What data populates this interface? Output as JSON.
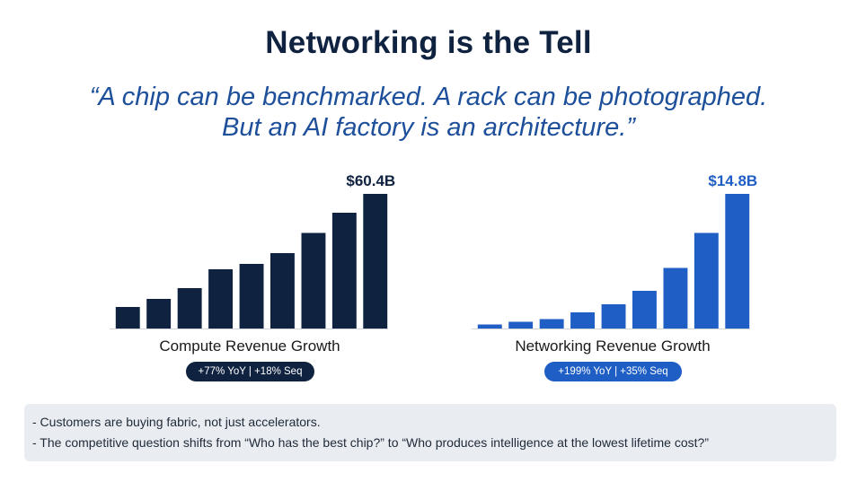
{
  "title": "Networking is the Tell",
  "quote": {
    "line1": "“A chip can be benchmarked. A rack can be photographed.",
    "line2": "But an AI factory is an architecture.”"
  },
  "chart_data": [
    {
      "type": "bar",
      "xlabel": "Compute Revenue Growth",
      "ylabel": "",
      "values": [
        0.16,
        0.22,
        0.3,
        0.44,
        0.48,
        0.56,
        0.71,
        0.86,
        1.0
      ],
      "value_label": "$60.4B",
      "badge": "+77% YoY | +18% Seq",
      "color": "#0f2240",
      "label_color": "#0f2240",
      "grid": false
    },
    {
      "type": "bar",
      "xlabel": "Networking Revenue Growth",
      "ylabel": "",
      "values": [
        0.03,
        0.05,
        0.07,
        0.12,
        0.18,
        0.28,
        0.45,
        0.71,
        1.0
      ],
      "value_label": "$14.8B",
      "badge": "+199% YoY | +35% Seq",
      "color": "#1f5ec4",
      "label_color": "#1f5ec4",
      "grid": false
    }
  ],
  "notes": [
    "- Customers are buying fabric, not just accelerators.",
    "- The competitive question shifts from “Who has the best chip?” to “Who produces intelligence at the lowest lifetime cost?”"
  ]
}
